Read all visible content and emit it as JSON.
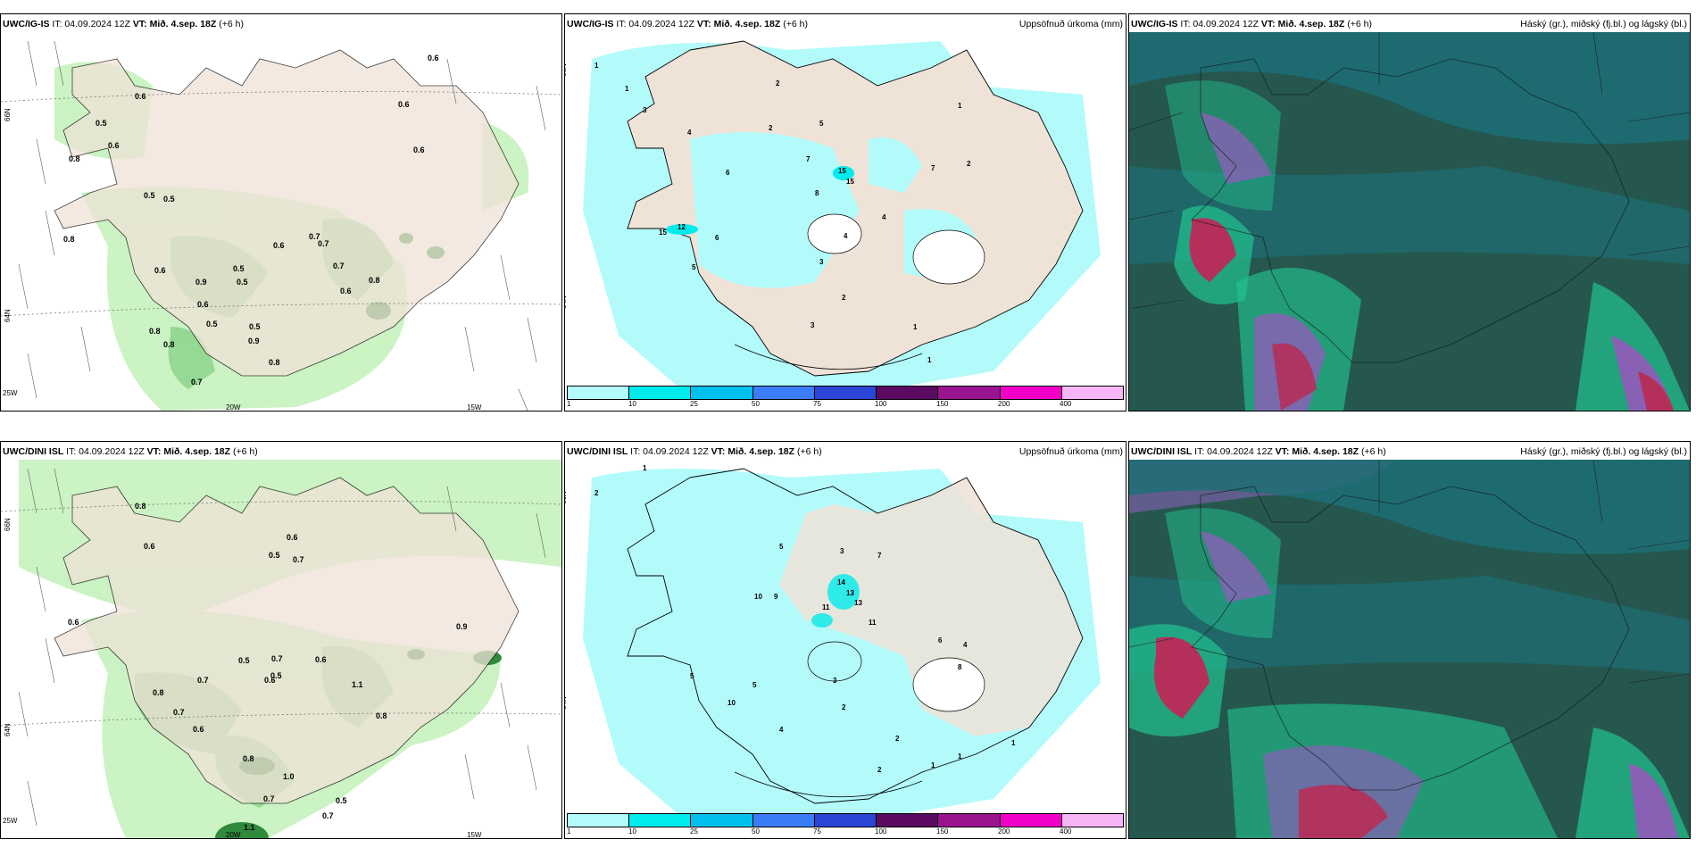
{
  "rows": [
    {
      "model": "UWC/IG-IS",
      "it": "IT: 04.09.2024 12Z",
      "vt_label": "VT:",
      "vt": "Mið. 4.sep. 18Z",
      "lead": "(+6 h)"
    },
    {
      "model": "UWC/DINI ISL",
      "it": "IT: 04.09.2024 12Z",
      "vt_label": "VT:",
      "vt": "Mið. 4.sep. 18Z",
      "lead": "(+6 h)"
    }
  ],
  "precip_title": "Uppsöfnuð úrkoma (mm)",
  "cloud_title": "Háský (gr.), miðský (fj.bl.) og lágský (bl.)",
  "lat_labels": [
    "66N",
    "64N"
  ],
  "lon_labels": [
    "25W",
    "20W",
    "15W"
  ],
  "colorbar": {
    "ticks": [
      "1",
      "10",
      "25",
      "50",
      "75",
      "100",
      "150",
      "200",
      "400"
    ],
    "colors": [
      "#b3fbfb",
      "#00ebeb",
      "#00c0ee",
      "#3b7df7",
      "#2b45d6",
      "#5a0a60",
      "#9a148f",
      "#f200c8",
      "#f6b6f6"
    ]
  },
  "top_left_labels": [
    "0.6",
    "0.6",
    "0.6",
    "0.6",
    "0.5",
    "0.5",
    "0.8",
    "0.6",
    "0.6",
    "0.5",
    "0.5",
    "0.7",
    "0.8",
    "0.7",
    "0.6",
    "0.9",
    "0.5",
    "0.6",
    "0.8",
    "0.7",
    "0.8",
    "0.6",
    "0.5",
    "0.5",
    "0.9",
    "0.8",
    "0.8",
    "0.7"
  ],
  "top_mid_labels": [
    "1",
    "1",
    "2",
    "3",
    "4",
    "2",
    "5",
    "7",
    "6",
    "4",
    "15",
    "15",
    "7",
    "2",
    "1",
    "8",
    "6",
    "5",
    "3",
    "4",
    "3",
    "2",
    "1",
    "1",
    "12",
    "15"
  ],
  "bot_left_labels": [
    "0.8",
    "0.6",
    "0.6",
    "0.5",
    "0.7",
    "0.5",
    "0.7",
    "0.6",
    "0.6",
    "0.9",
    "0.8",
    "1.1",
    "0.8",
    "0.7",
    "0.7",
    "0.6",
    "0.5",
    "0.6",
    "0.8",
    "1.0",
    "0.7",
    "0.5",
    "0.7",
    "1.1"
  ],
  "bot_mid_labels": [
    "2",
    "1",
    "3",
    "5",
    "10",
    "7",
    "14",
    "13",
    "13",
    "11",
    "9",
    "11",
    "6",
    "4",
    "8",
    "10",
    "5",
    "5",
    "3",
    "2",
    "2",
    "1",
    "4",
    "2",
    "1",
    "1"
  ],
  "colors": {
    "land": "#efe2d7",
    "precip_light": "#b3fbfb",
    "cloud_dark": "#25574f",
    "cloud_teal": "#1d6e74",
    "cloud_green": "#21c38f",
    "cloud_purple": "#8861b5",
    "cloud_red": "#b4305a",
    "green_shade": "#c8f2c0"
  }
}
